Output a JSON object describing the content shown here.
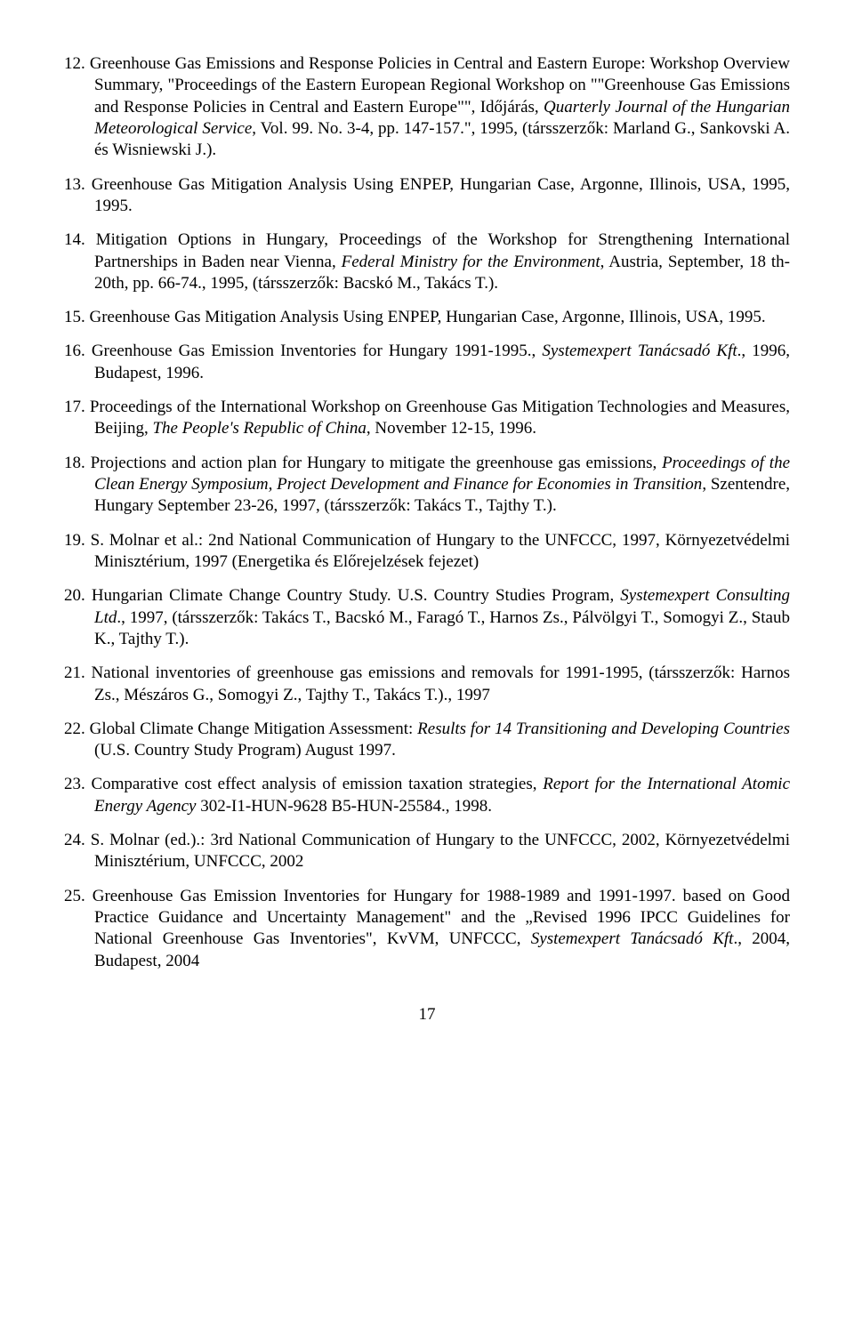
{
  "items": [
    {
      "num": "12.",
      "text": "Greenhouse Gas Emissions and Response Policies in Central and Eastern Europe: Workshop Overview Summary, \"Proceedings of the Eastern European Regional Workshop on \"\"Greenhouse Gas Emissions and Response Policies in Central and Eastern Europe\"\", Időjárás, <i>Quarterly Journal of the Hungarian Meteorological Service</i>, Vol. 99. No. 3-4, pp. 147-157.\", 1995, (társszerzők: Marland G., Sankovski A. és Wisniewski J.)."
    },
    {
      "num": "13.",
      "text": "Greenhouse Gas Mitigation Analysis Using ENPEP, Hungarian Case, Argonne, Illinois, USA, 1995, 1995."
    },
    {
      "num": "14.",
      "text": "Mitigation Options in Hungary, Proceedings of the Workshop for Strengthening International Partnerships in Baden near Vienna, <i>Federal Ministry for the Environment</i>, Austria, September, 18 th-20th, pp. 66-74., 1995, (társszerzők: Bacskó M., Takács T.)."
    },
    {
      "num": "15.",
      "text": "Greenhouse Gas Mitigation Analysis Using ENPEP, Hungarian Case, Argonne, Illinois, USA, 1995."
    },
    {
      "num": "16.",
      "text": "Greenhouse Gas Emission Inventories for Hungary 1991-1995., <i>Systemexpert Tanácsadó Kft</i>., 1996, Budapest, 1996."
    },
    {
      "num": "17.",
      "text": "Proceedings of the  International Workshop on Greenhouse Gas Mitigation Technologies and Measures, Beijing, <i>The People's Republic of China</i>, November 12-15, 1996."
    },
    {
      "num": "18.",
      "text": "Projections and action plan for Hungary to mitigate the greenhouse gas emissions, <i>Proceedings of the Clean Energy Symposium, Project Development and Finance for Economies in Transition</i>, Szentendre, Hungary September 23-26, 1997, (társszerzők: Takács T., Tajthy T.)."
    },
    {
      "num": "19.",
      "text": "S. Molnar et al.: 2nd  National Communication of Hungary to the UNFCCC, 1997, Környezetvédelmi Minisztérium, 1997 (Energetika és Előrejelzések fejezet)"
    },
    {
      "num": "20.",
      "text": "Hungarian Climate Change Country Study. U.S. Country Studies Program, <i>Systemexpert Consulting Ltd</i>., 1997, (társszerzők: Takács T., Bacskó M., Faragó T., Harnos Zs., Pálvölgyi T., Somogyi Z., Staub K., Tajthy T.)."
    },
    {
      "num": "21.",
      "text": "National inventories of greenhouse gas emissions and removals for 1991-1995, (társszerzők: Harnos Zs., Mészáros G., Somogyi Z., Tajthy T., Takács T.)., 1997"
    },
    {
      "num": "22.",
      "text": "Global Climate Change Mitigation Assessment: <i>Results for 14 Transitioning and Developing Countries</i> (U.S. Country Study Program) August 1997."
    },
    {
      "num": "23.",
      "text": "Comparative cost effect analysis of emission taxation strategies, <i>Report for the International Atomic Energy Agency</i> 302-I1-HUN-9628 B5-HUN-25584., 1998."
    },
    {
      "num": "24.",
      "text": "S. Molnar (ed.).: 3rd  National Communication of Hungary to the UNFCCC, 2002, Környezetvédelmi Minisztérium, UNFCCC, 2002"
    },
    {
      "num": "25.",
      "text": "Greenhouse Gas Emission Inventories for Hungary for 1988-1989 and 1991-1997. based on Good Practice Guidance and Uncertainty Management\" and the „Revised 1996 IPCC Guidelines for National Greenhouse Gas Inventories\", KvVM, UNFCCC, <i>Systemexpert Tanácsadó Kft</i>., 2004, Budapest, 2004"
    }
  ],
  "pageNumber": "17"
}
